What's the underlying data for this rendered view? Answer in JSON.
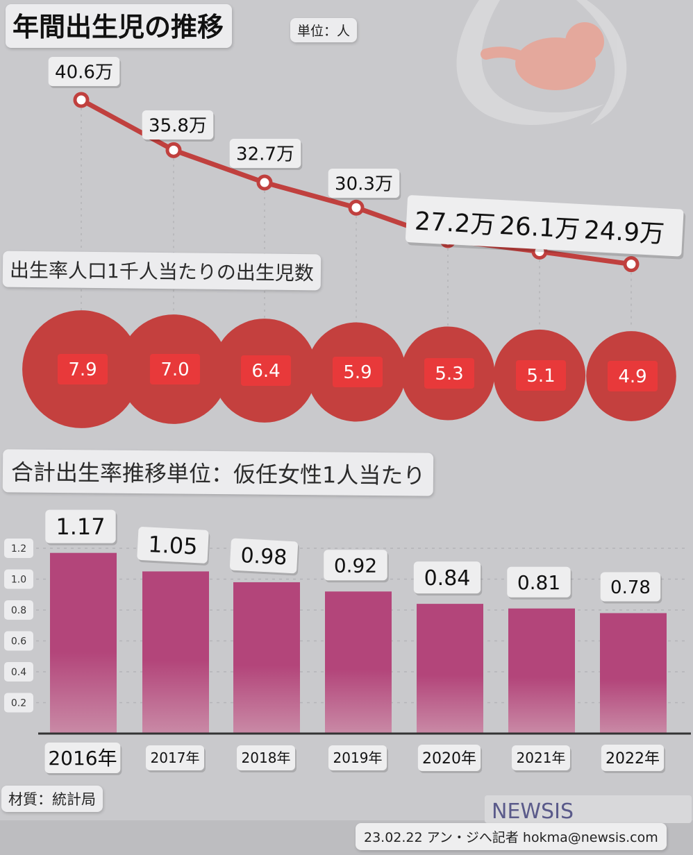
{
  "title": "年間出生児の推移",
  "unit": "単位：人",
  "rate_title": "出生率人口1千人当たりの出生児数",
  "tfr_title": "合計出生率推移単位：仮任女性1人当たり",
  "source": "材質：統計局",
  "brand": "NEWSIS",
  "byline": "23.02.22 アン・ジへ記者 hokma@newsis.com",
  "chart_data": [
    {
      "type": "line",
      "title": "年間出生児の推移",
      "x": [
        "2016年",
        "2017年",
        "2018年",
        "2019年",
        "2020年",
        "2021年",
        "2022年"
      ],
      "values": [
        40.6,
        35.8,
        32.7,
        30.3,
        27.2,
        26.1,
        24.9
      ],
      "value_labels": [
        "40.6万",
        "35.8万",
        "32.7万",
        "30.3万",
        "27.2万",
        "26.1万",
        "24.9万"
      ],
      "unit": "単位：人",
      "color": "#c0403e"
    },
    {
      "type": "bubble",
      "title": "出生率人口1千人当たりの出生児数",
      "x": [
        "2016年",
        "2017年",
        "2018年",
        "2019年",
        "2020年",
        "2021年",
        "2022年"
      ],
      "values": [
        7.9,
        7.0,
        6.4,
        5.9,
        5.3,
        5.1,
        4.9
      ],
      "value_labels": [
        "7.9",
        "7.0",
        "6.4",
        "5.9",
        "5.3",
        "5.1",
        "4.9"
      ],
      "color": "#c4403e",
      "label_color": "#e8393a"
    },
    {
      "type": "bar",
      "title": "合計出生率推移単位：仮任女性1人当たり",
      "categories": [
        "2016年",
        "2017年",
        "2018年",
        "2019年",
        "2020年",
        "2021年",
        "2022年"
      ],
      "values": [
        1.17,
        1.05,
        0.98,
        0.92,
        0.84,
        0.81,
        0.78
      ],
      "value_labels": [
        "1.17",
        "1.05",
        "0.98",
        "0.92",
        "0.84",
        "0.81",
        "0.78"
      ],
      "yticks": [
        "0.2",
        "0.4",
        "0.6",
        "0.8",
        "1.0",
        "1.2"
      ],
      "ylim": [
        0,
        1.2
      ],
      "grid": true,
      "color": "#b3457a"
    }
  ]
}
